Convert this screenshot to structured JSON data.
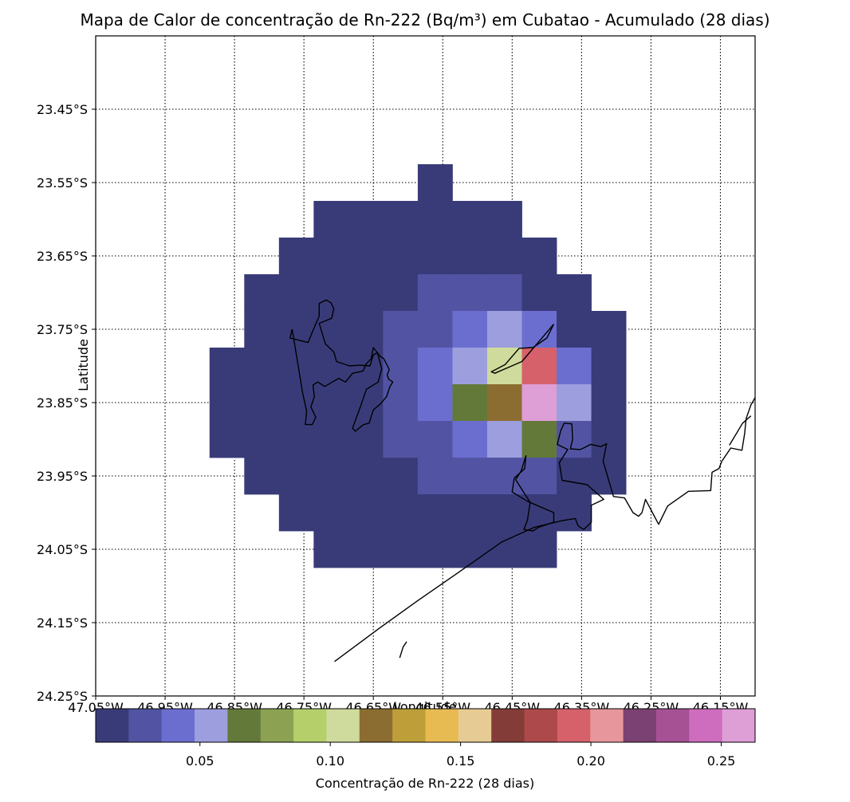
{
  "chart_data": {
    "type": "heatmap",
    "title": "Mapa de Calor de concentração de Rn-222 (Bq/m³) em Cubatao - Acumulado (28 dias)",
    "xlabel": "Longitude",
    "ylabel": "Latitude",
    "colorbar_label": "Concentração de Rn-222 (28 dias)",
    "x_range": [
      -47.05,
      -46.1
    ],
    "y_range": [
      -24.25,
      -23.35
    ],
    "x_ticks": [
      {
        "value": -47.05,
        "label": "47.05°W"
      },
      {
        "value": -46.95,
        "label": "46.95°W"
      },
      {
        "value": -46.85,
        "label": "46.85°W"
      },
      {
        "value": -46.75,
        "label": "46.75°W"
      },
      {
        "value": -46.65,
        "label": "46.65°W"
      },
      {
        "value": -46.55,
        "label": "46.55°W"
      },
      {
        "value": -46.45,
        "label": "46.45°W"
      },
      {
        "value": -46.35,
        "label": "46.35°W"
      },
      {
        "value": -46.25,
        "label": "46.25°W"
      },
      {
        "value": -46.15,
        "label": "46.15°W"
      }
    ],
    "y_ticks": [
      {
        "value": -23.45,
        "label": "23.45°S"
      },
      {
        "value": -23.55,
        "label": "23.55°S"
      },
      {
        "value": -23.65,
        "label": "23.65°S"
      },
      {
        "value": -23.75,
        "label": "23.75°S"
      },
      {
        "value": -23.85,
        "label": "23.85°S"
      },
      {
        "value": -23.95,
        "label": "23.95°S"
      },
      {
        "value": -24.05,
        "label": "24.05°S"
      },
      {
        "value": -24.15,
        "label": "24.15°S"
      },
      {
        "value": -24.25,
        "label": "24.25°S"
      }
    ],
    "grid": true,
    "colorbar_range": [
      0.01,
      0.263
    ],
    "colorbar_ticks": [
      0.05,
      0.1,
      0.15,
      0.2,
      0.25
    ],
    "colorbar_tick_labels": [
      "0.05",
      "0.10",
      "0.15",
      "0.20",
      "0.25"
    ],
    "colors": [
      "#393b79",
      "#5254a3",
      "#6b6ecf",
      "#9c9ede",
      "#637939",
      "#8ca252",
      "#b5cf6b",
      "#cedb9c",
      "#8c6d31",
      "#bd9e39",
      "#e7ba52",
      "#e7cb94",
      "#843c39",
      "#ad494a",
      "#d6616b",
      "#e7969c",
      "#7b4173",
      "#a55194",
      "#ce6dbd",
      "#de9ed6"
    ],
    "cell_lon_edges": [
      -46.886,
      -46.836,
      -46.786,
      -46.736,
      -46.686,
      -46.636,
      -46.586,
      -46.536,
      -46.486,
      -46.436,
      -46.386,
      -46.336,
      -46.286
    ],
    "cell_lat_edges": [
      -23.525,
      -23.575,
      -23.625,
      -23.675,
      -23.725,
      -23.775,
      -23.825,
      -23.875,
      -23.925,
      -23.975,
      -24.025,
      -24.075
    ],
    "values": [
      [
        null,
        null,
        null,
        null,
        null,
        null,
        0.02,
        null,
        null,
        null,
        null,
        null
      ],
      [
        null,
        null,
        null,
        0.02,
        0.02,
        0.02,
        0.02,
        0.02,
        0.02,
        null,
        null,
        null
      ],
      [
        null,
        null,
        0.02,
        0.02,
        0.02,
        0.02,
        0.02,
        0.02,
        0.02,
        0.02,
        null,
        null
      ],
      [
        null,
        0.02,
        0.02,
        0.02,
        0.02,
        0.02,
        0.03,
        0.03,
        0.03,
        0.02,
        0.02,
        null
      ],
      [
        null,
        0.02,
        0.02,
        0.02,
        0.02,
        0.03,
        0.03,
        0.04,
        0.055,
        0.04,
        0.02,
        0.02
      ],
      [
        0.02,
        0.02,
        0.02,
        0.02,
        0.02,
        0.03,
        0.04,
        0.055,
        0.1,
        0.19,
        0.04,
        0.02
      ],
      [
        0.02,
        0.02,
        0.02,
        0.02,
        0.02,
        0.03,
        0.04,
        0.07,
        0.115,
        0.26,
        0.055,
        0.02
      ],
      [
        0.02,
        0.02,
        0.02,
        0.02,
        0.02,
        0.03,
        0.03,
        0.04,
        0.055,
        0.07,
        0.03,
        0.02
      ],
      [
        null,
        0.02,
        0.02,
        0.02,
        0.02,
        0.02,
        0.03,
        0.03,
        0.03,
        0.03,
        0.02,
        0.02
      ],
      [
        null,
        null,
        0.02,
        0.02,
        0.02,
        0.02,
        0.02,
        0.02,
        0.02,
        0.02,
        0.02,
        null
      ],
      [
        null,
        null,
        null,
        0.02,
        0.02,
        0.02,
        0.02,
        0.02,
        0.02,
        0.02,
        null,
        null
      ]
    ],
    "coastline": [
      [
        [
          -46.706,
          -24.203
        ],
        [
          -46.642,
          -24.158
        ],
        [
          -46.586,
          -24.12
        ],
        [
          -46.528,
          -24.082
        ],
        [
          -46.465,
          -24.04
        ],
        [
          -46.418,
          -24.02
        ],
        [
          -46.378,
          -24.011
        ],
        [
          -46.359,
          -24.008
        ],
        [
          -46.355,
          -24.018
        ],
        [
          -46.347,
          -24.023
        ],
        [
          -46.336,
          -24.013
        ],
        [
          -46.336,
          -23.99
        ],
        [
          -46.318,
          -23.982
        ],
        [
          -46.342,
          -23.962
        ],
        [
          -46.378,
          -23.956
        ],
        [
          -46.382,
          -23.932
        ],
        [
          -46.37,
          -23.914
        ],
        [
          -46.385,
          -23.907
        ],
        [
          -46.38,
          -23.888
        ],
        [
          -46.375,
          -23.878
        ],
        [
          -46.364,
          -23.879
        ],
        [
          -46.363,
          -23.9
        ],
        [
          -46.366,
          -23.913
        ],
        [
          -46.352,
          -23.914
        ],
        [
          -46.345,
          -23.911
        ],
        [
          -46.337,
          -23.907
        ],
        [
          -46.322,
          -23.91
        ],
        [
          -46.314,
          -23.906
        ],
        [
          -46.319,
          -23.93
        ],
        [
          -46.304,
          -23.978
        ],
        [
          -46.288,
          -23.98
        ],
        [
          -46.276,
          -24.0
        ],
        [
          -46.268,
          -24.005
        ],
        [
          -46.263,
          -24.0
        ],
        [
          -46.258,
          -23.982
        ],
        [
          -46.239,
          -24.016
        ],
        [
          -46.226,
          -23.991
        ],
        [
          -46.196,
          -23.971
        ],
        [
          -46.164,
          -23.97
        ],
        [
          -46.162,
          -23.945
        ],
        [
          -46.152,
          -23.94
        ],
        [
          -46.148,
          -23.93
        ],
        [
          -46.135,
          -23.912
        ],
        [
          -46.119,
          -23.915
        ],
        [
          -46.115,
          -23.892
        ],
        [
          -46.113,
          -23.872
        ],
        [
          -46.106,
          -23.853
        ],
        [
          -46.092,
          -23.83
        ],
        [
          -46.076,
          -23.82
        ],
        [
          -46.057,
          -23.814
        ],
        [
          -46.035,
          -23.81
        ],
        [
          -46.02,
          -23.808
        ],
        [
          -46.005,
          -23.808
        ]
      ],
      [
        [
          -46.612,
          -24.198
        ],
        [
          -46.607,
          -24.183
        ],
        [
          -46.602,
          -24.176
        ]
      ],
      [
        [
          -46.137,
          -23.908
        ],
        [
          -46.118,
          -23.878
        ],
        [
          -46.106,
          -23.868
        ]
      ],
      [
        [
          -46.39,
          -23.743
        ],
        [
          -46.436,
          -23.794
        ],
        [
          -46.475,
          -23.81
        ],
        [
          -46.48,
          -23.808
        ],
        [
          -46.46,
          -23.798
        ],
        [
          -46.44,
          -23.776
        ],
        [
          -46.42,
          -23.775
        ],
        [
          -46.4,
          -23.762
        ],
        [
          -46.39,
          -23.743
        ]
      ],
      [
        [
          -46.767,
          -23.75
        ],
        [
          -46.77,
          -23.762
        ],
        [
          -46.744,
          -23.768
        ],
        [
          -46.738,
          -23.754
        ],
        [
          -46.728,
          -23.732
        ],
        [
          -46.728,
          -23.715
        ],
        [
          -46.718,
          -23.71
        ],
        [
          -46.711,
          -23.714
        ],
        [
          -46.707,
          -23.722
        ],
        [
          -46.71,
          -23.735
        ],
        [
          -46.728,
          -23.742
        ],
        [
          -46.719,
          -23.77
        ],
        [
          -46.707,
          -23.781
        ],
        [
          -46.703,
          -23.794
        ],
        [
          -46.684,
          -23.8
        ],
        [
          -46.67,
          -23.799
        ],
        [
          -46.655,
          -23.8
        ],
        [
          -46.65,
          -23.785
        ],
        [
          -46.644,
          -23.782
        ],
        [
          -46.638,
          -23.804
        ],
        [
          -46.643,
          -23.822
        ],
        [
          -46.66,
          -23.832
        ],
        [
          -46.668,
          -23.854
        ],
        [
          -46.68,
          -23.885
        ],
        [
          -46.676,
          -23.889
        ],
        [
          -46.664,
          -23.88
        ],
        [
          -46.656,
          -23.878
        ],
        [
          -46.65,
          -23.86
        ],
        [
          -46.64,
          -23.852
        ],
        [
          -46.631,
          -23.842
        ],
        [
          -46.626,
          -23.828
        ],
        [
          -46.622,
          -23.822
        ],
        [
          -46.628,
          -23.818
        ],
        [
          -46.63,
          -23.812
        ],
        [
          -46.627,
          -23.805
        ],
        [
          -46.635,
          -23.79
        ],
        [
          -46.64,
          -23.787
        ],
        [
          -46.65,
          -23.775
        ],
        [
          -46.653,
          -23.79
        ],
        [
          -46.66,
          -23.797
        ],
        [
          -46.665,
          -23.807
        ],
        [
          -46.68,
          -23.81
        ],
        [
          -46.69,
          -23.822
        ],
        [
          -46.7,
          -23.817
        ],
        [
          -46.709,
          -23.822
        ],
        [
          -46.72,
          -23.828
        ],
        [
          -46.73,
          -23.822
        ],
        [
          -46.737,
          -23.826
        ],
        [
          -46.735,
          -23.842
        ],
        [
          -46.74,
          -23.856
        ],
        [
          -46.733,
          -23.87
        ],
        [
          -46.738,
          -23.88
        ],
        [
          -46.748,
          -23.88
        ],
        [
          -46.746,
          -23.862
        ],
        [
          -46.752,
          -23.836
        ],
        [
          -46.767,
          -23.75
        ]
      ],
      [
        [
          -46.43,
          -23.922
        ],
        [
          -46.432,
          -23.94
        ],
        [
          -46.447,
          -23.953
        ],
        [
          -46.45,
          -23.972
        ],
        [
          -46.427,
          -23.985
        ],
        [
          -46.39,
          -24.0
        ],
        [
          -46.39,
          -24.013
        ],
        [
          -46.412,
          -24.02
        ],
        [
          -46.42,
          -24.025
        ],
        [
          -46.433,
          -24.023
        ],
        [
          -46.428,
          -24.01
        ],
        [
          -46.424,
          -23.986
        ],
        [
          -46.435,
          -23.97
        ],
        [
          -46.445,
          -23.955
        ],
        [
          -46.437,
          -23.943
        ],
        [
          -46.43,
          -23.922
        ]
      ]
    ]
  }
}
